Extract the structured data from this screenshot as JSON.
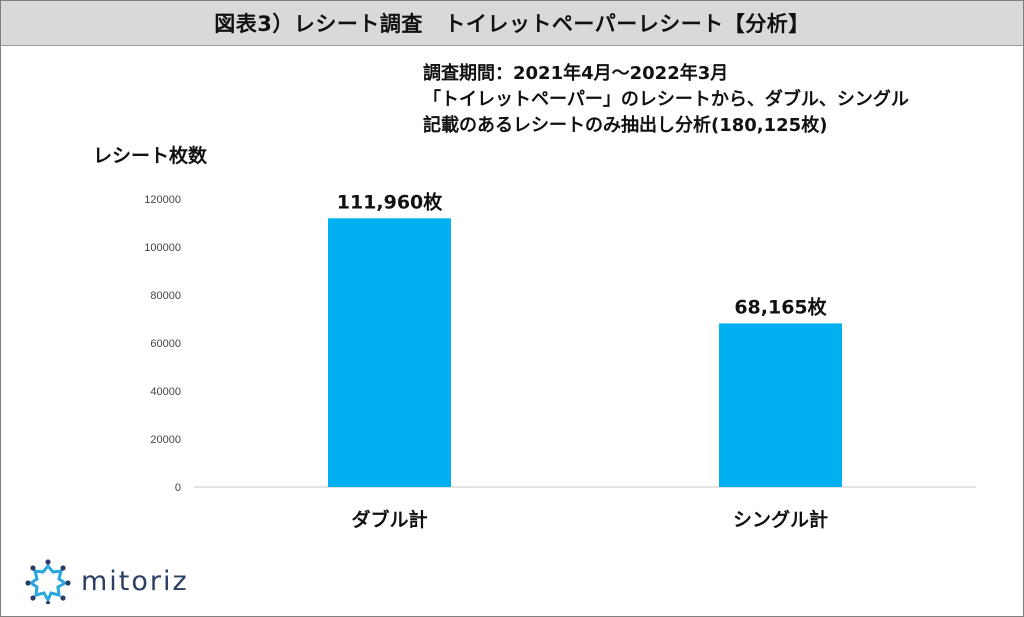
{
  "title": "図表3）レシート調査　トイレットペーパーレシート【分析】",
  "notes": [
    "調査期間：2021年4月～2022年3月",
    "「トイレットペーパー」のレシートから、ダブル、シングル",
    "記載のあるレシートのみ抽出し分析(180,125枚)"
  ],
  "logo": {
    "text": "mitoriz",
    "icon": "sparkle-ring-icon"
  },
  "colors": {
    "bar": "#00b0f0",
    "axis": "#d9d9d9",
    "logo": "#2a3f63",
    "title_bg": "#d9d9d9"
  },
  "chart_data": {
    "type": "bar",
    "title": "",
    "xlabel": "",
    "ylabel": "レシート枚数",
    "categories": [
      "ダブル計",
      "シングル計"
    ],
    "values": [
      111960,
      68165
    ],
    "data_labels": [
      "111,960枚",
      "68,165枚"
    ],
    "ylim": [
      0,
      120000
    ],
    "yticks": [
      "0",
      "20000",
      "40000",
      "60000",
      "80000",
      "100000",
      "120000"
    ],
    "grid": false,
    "legend": "none"
  }
}
